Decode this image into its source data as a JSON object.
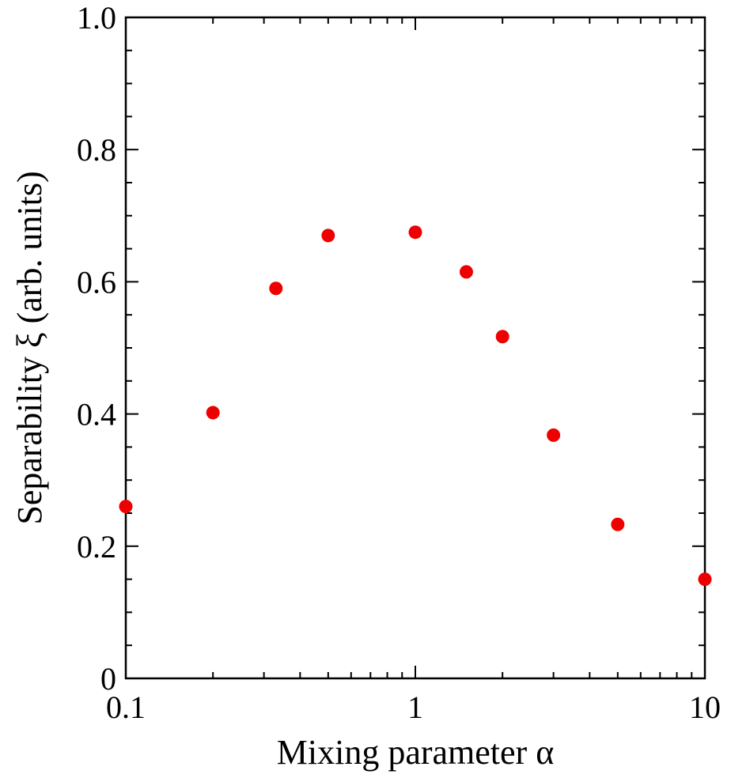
{
  "chart_data": {
    "type": "scatter",
    "xlabel": "Mixing parameter α",
    "ylabel": "Separability ξ (arb. units)",
    "x_scale": "log",
    "xlim": [
      0.1,
      10
    ],
    "ylim": [
      0,
      1.0
    ],
    "x_ticks": [
      {
        "value": 0.1,
        "label": "0.1"
      },
      {
        "value": 1,
        "label": "1"
      },
      {
        "value": 10,
        "label": "10"
      }
    ],
    "y_ticks": [
      {
        "value": 0,
        "label": "0"
      },
      {
        "value": 0.2,
        "label": "0.2"
      },
      {
        "value": 0.4,
        "label": "0.4"
      },
      {
        "value": 0.6,
        "label": "0.6"
      },
      {
        "value": 0.8,
        "label": "0.8"
      },
      {
        "value": 1.0,
        "label": "1.0"
      }
    ],
    "y_minor_step": 0.05,
    "grid": false,
    "marker_color": "#ee0000",
    "points": [
      {
        "x": 0.1,
        "y": 0.26
      },
      {
        "x": 0.2,
        "y": 0.402
      },
      {
        "x": 0.33,
        "y": 0.59
      },
      {
        "x": 0.5,
        "y": 0.67
      },
      {
        "x": 1.0,
        "y": 0.675
      },
      {
        "x": 1.5,
        "y": 0.615
      },
      {
        "x": 2.0,
        "y": 0.517
      },
      {
        "x": 3.0,
        "y": 0.368
      },
      {
        "x": 5.0,
        "y": 0.233
      },
      {
        "x": 10.0,
        "y": 0.15
      }
    ]
  }
}
